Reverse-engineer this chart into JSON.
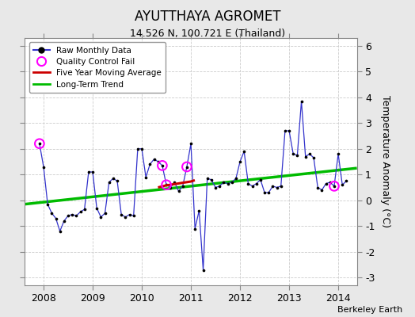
{
  "title": "AYUTTHAYA AGROMET",
  "subtitle": "14.526 N, 100.721 E (Thailand)",
  "ylabel": "Temperature Anomaly (°C)",
  "credit": "Berkeley Earth",
  "ylim": [
    -3.3,
    6.3
  ],
  "xlim": [
    2007.62,
    2014.38
  ],
  "yticks": [
    -3,
    -2,
    -1,
    0,
    1,
    2,
    3,
    4,
    5,
    6
  ],
  "xticks": [
    2008,
    2009,
    2010,
    2011,
    2012,
    2013,
    2014
  ],
  "bg_color": "#e8e8e8",
  "plot_bg_color": "#ffffff",
  "raw_x": [
    2007.917,
    2008.0,
    2008.083,
    2008.167,
    2008.25,
    2008.333,
    2008.417,
    2008.5,
    2008.583,
    2008.667,
    2008.75,
    2008.833,
    2008.917,
    2009.0,
    2009.083,
    2009.167,
    2009.25,
    2009.333,
    2009.417,
    2009.5,
    2009.583,
    2009.667,
    2009.75,
    2009.833,
    2009.917,
    2010.0,
    2010.083,
    2010.167,
    2010.25,
    2010.333,
    2010.417,
    2010.5,
    2010.583,
    2010.667,
    2010.75,
    2010.833,
    2010.917,
    2011.0,
    2011.083,
    2011.167,
    2011.25,
    2011.333,
    2011.417,
    2011.5,
    2011.583,
    2011.667,
    2011.75,
    2011.833,
    2011.917,
    2012.0,
    2012.083,
    2012.167,
    2012.25,
    2012.333,
    2012.417,
    2012.5,
    2012.583,
    2012.667,
    2012.75,
    2012.833,
    2012.917,
    2013.0,
    2013.083,
    2013.167,
    2013.25,
    2013.333,
    2013.417,
    2013.5,
    2013.583,
    2013.667,
    2013.75,
    2013.833,
    2013.917,
    2014.0,
    2014.083,
    2014.167
  ],
  "raw_y": [
    2.2,
    1.3,
    -0.15,
    -0.5,
    -0.7,
    -1.2,
    -0.8,
    -0.6,
    -0.55,
    -0.6,
    -0.45,
    -0.35,
    1.1,
    1.1,
    -0.3,
    -0.65,
    -0.5,
    0.7,
    0.85,
    0.75,
    -0.55,
    -0.65,
    -0.55,
    -0.6,
    2.0,
    2.0,
    0.9,
    1.4,
    1.6,
    1.5,
    1.35,
    0.6,
    0.5,
    0.7,
    0.35,
    0.55,
    1.3,
    2.2,
    -1.1,
    -0.4,
    -2.7,
    0.85,
    0.8,
    0.5,
    0.55,
    0.7,
    0.65,
    0.7,
    0.85,
    1.5,
    1.9,
    0.65,
    0.55,
    0.65,
    0.8,
    0.3,
    0.3,
    0.55,
    0.5,
    0.55,
    2.7,
    2.7,
    1.8,
    1.75,
    3.85,
    1.7,
    1.8,
    1.65,
    0.5,
    0.4,
    0.65,
    0.7,
    0.55,
    1.8,
    0.6,
    0.75
  ],
  "qc_fail_x": [
    2007.917,
    2010.417,
    2010.5,
    2010.917,
    2013.917
  ],
  "qc_fail_y": [
    2.2,
    1.35,
    0.6,
    1.3,
    0.55
  ],
  "moving_avg_x": [
    2010.33,
    2010.5,
    2010.67,
    2010.83,
    2011.0,
    2011.08
  ],
  "moving_avg_y": [
    0.5,
    0.58,
    0.63,
    0.68,
    0.73,
    0.78
  ],
  "trend_x": [
    2007.62,
    2014.38
  ],
  "trend_y": [
    -0.15,
    1.25
  ],
  "line_color": "#3333cc",
  "dot_color": "#000000",
  "qc_color": "#ff00ff",
  "moving_avg_color": "#cc0000",
  "trend_color": "#00bb00",
  "grid_color": "#cccccc",
  "spine_color": "#888888"
}
